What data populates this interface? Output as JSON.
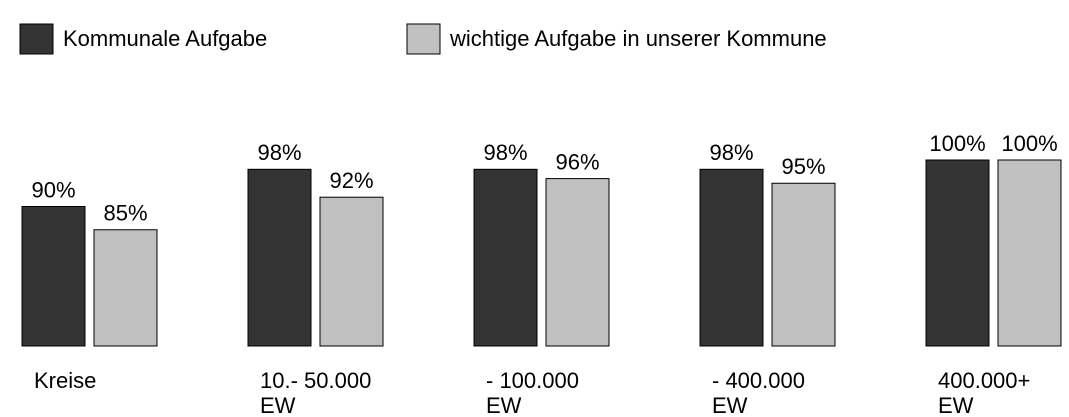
{
  "chart_data": {
    "type": "bar",
    "categories": [
      "Kreise",
      "10.- 50.000\nEW",
      "- 100.000\nEW",
      "- 400.000\nEW",
      "400.000+\nEW"
    ],
    "series": [
      {
        "name": "Kommunale Aufgabe",
        "color": "#333333",
        "values": [
          90,
          98,
          98,
          98,
          100
        ],
        "value_labels": [
          "90%",
          "98%",
          "98%",
          "98%",
          "100%"
        ]
      },
      {
        "name": "wichtige Aufgabe in unserer Kommune",
        "color": "#c0c0c0",
        "values": [
          85,
          92,
          96,
          95,
          100
        ],
        "value_labels": [
          "85%",
          "92%",
          "96%",
          "95%",
          "100%"
        ]
      }
    ],
    "ylim": [
      60,
      100
    ]
  }
}
